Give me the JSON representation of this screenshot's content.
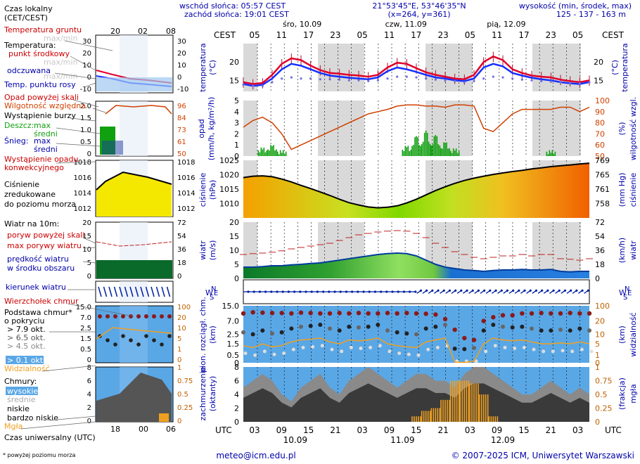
{
  "header": {
    "sunrise": "wschód słońca: 05:57 CEST",
    "sunset": "zachód słońca: 19:01 CEST",
    "coords": "21°53'45\"E, 53°46'35\"N",
    "grid": "(x=264, y=361)",
    "alt_title": "wysokość (min, środek, max)",
    "alt_values": "125 - 137 - 163 m"
  },
  "legend": {
    "local_time": "Czas lokalny",
    "local_time_zone": "(CET/CEST)",
    "soil_temp": "Temperatura gruntu",
    "soil_temp_sub": "max/min",
    "temperature": "Temperatura:",
    "mid_point": "punkt środkowy",
    "max_min": "max/min",
    "feels": "odczuwana",
    "feels_maxmin": "max/min",
    "dew": "Temp. punktu rosy",
    "precip_over": "Opad powyżej skali",
    "humidity": "Wilgotność względna",
    "storm": "Wystąpienie burzy",
    "rain": "Deszcz:",
    "rain_max": "max",
    "rain_mid": "średni",
    "snow": "Śnieg:",
    "snow_max": "max",
    "snow_mid": "średni",
    "conv1": "Wystąpienie opadu",
    "conv2": "konwekcyjnego",
    "pressure1": "Ciśnienie",
    "pressure2": "zredukowane",
    "pressure3": "do poziomu morza",
    "wind": "Wiatr na 10m:",
    "gust_over": "poryw powyżej skali",
    "gust_max": "max porywy wiatru",
    "wind_mean1": "prędkość wiatru",
    "wind_mean2": "w środku obszaru",
    "wind_dir": "kierunek wiatru",
    "cloud_top": "Wierzchołek chmur",
    "cloud_base1": "Podstawa chmur*",
    "cloud_base2": "o pokryciu",
    "okt1": "> 7.9 okt.",
    "okt2": "> 6.5 okt.",
    "okt3": "> 4.5 okt.",
    "okt4": "> 2.5 okt.",
    "okt5": "> 0.1 okt.",
    "visibility": "Widzialność",
    "clouds": "Chmury:",
    "cl_high": "wysokie",
    "cl_mid": "średnie",
    "cl_low": "niskie",
    "cl_vlow": "bardzo niskie",
    "fog": "Mgła",
    "utc": "Czas uniwersalny (UTC)",
    "footnote": "* powyżej poziomu morza"
  },
  "legend_ticks": {
    "top_local": [
      "20",
      "02",
      "08"
    ],
    "bottom_utc": [
      "18",
      "00",
      "06"
    ]
  },
  "axes": {
    "cest": "CEST",
    "utc": "UTC",
    "temp_label": "temperatura",
    "temp_unit": "(°C)",
    "precip_label": "opad",
    "precip_unit": "(mm/h, kg/m²/h)",
    "hum_label": "wilgotność wzgl.",
    "hum_unit": "(%)",
    "press_label": "ciśnienie",
    "press_unit": "(hPa)",
    "press_unit_r": "(mm Hg)",
    "wind_label": "wiatr",
    "wind_unit": "(m/s)",
    "wind_unit_r": "(km/h)",
    "cloud_label": "pion. rozciągł. chm.",
    "cloud_unit": "(km)",
    "vis_label": "widzialność",
    "vis_unit": "(km)",
    "cover_label": "zachmurzenie",
    "cover_unit": "(oktanty)",
    "fog_label": "mgła",
    "fog_unit": "(frakcja)",
    "compass": [
      "N",
      "W",
      "E",
      "S"
    ]
  },
  "dates_top": [
    {
      "label": "śro, 10.09",
      "pos": 0.17
    },
    {
      "label": "czw, 11.09",
      "pos": 0.47
    },
    {
      "label": "pią, 12.09",
      "pos": 0.76
    }
  ],
  "dates_bottom": [
    {
      "label": "10.09",
      "pos": 0.15
    },
    {
      "label": "11.09",
      "pos": 0.46
    },
    {
      "label": "12.09",
      "pos": 0.75
    }
  ],
  "cest_ticks": [
    "05",
    "11",
    "17",
    "23",
    "05",
    "11",
    "17",
    "23",
    "05",
    "11",
    "17",
    "23",
    "05"
  ],
  "utc_ticks": [
    "03",
    "09",
    "15",
    "21",
    "03",
    "09",
    "15",
    "21",
    "03",
    "09",
    "15",
    "21",
    "03"
  ],
  "footer": {
    "email": "meteo@icm.edu.pl",
    "copyright": "© 2007-2025 ICM, Uniwersytet Warszawski"
  },
  "colors": {
    "frame": "#000000",
    "night": "#d9d9d9",
    "label_blue": "#0000aa",
    "label_red": "#cc0000",
    "temp_red": "#e0002a",
    "temp_blue": "#1430ff",
    "humidity": "#d04000",
    "rain": "#10a010",
    "pressure_line": "#000000",
    "wind_dark": "#003c9c",
    "sky": "#5aa7e6",
    "orange": "#f0a020"
  },
  "chart_data": [
    {
      "type": "line",
      "title": "temperatura",
      "ylim": [
        12,
        25
      ],
      "series": [
        {
          "name": "punkt środkowy",
          "values": [
            14.5,
            14.0,
            14.3,
            16.5,
            19.5,
            21.0,
            20.5,
            19.0,
            17.8,
            17.0,
            16.8,
            16.5,
            16.3,
            16.0,
            16.5,
            18.5,
            19.8,
            19.5,
            18.3,
            17.2,
            16.5,
            16.0,
            15.5,
            15.3,
            16.5,
            20.0,
            21.5,
            20.5,
            18.0,
            17.0,
            16.3,
            16.0,
            15.8,
            15.2,
            14.8,
            14.5,
            15.0
          ]
        },
        {
          "name": "odczuwana",
          "values": [
            14.0,
            13.5,
            13.8,
            15.5,
            18.0,
            19.5,
            19.0,
            18.0,
            17.0,
            16.3,
            16.0,
            15.7,
            15.5,
            15.3,
            15.8,
            17.5,
            18.5,
            18.0,
            17.3,
            16.5,
            15.8,
            15.5,
            15.0,
            14.8,
            15.5,
            18.5,
            19.5,
            18.8,
            17.0,
            16.3,
            15.7,
            15.3,
            15.0,
            14.5,
            14.2,
            14.0,
            14.5
          ]
        },
        {
          "name": "Temp. punktu rosy",
          "values": [
            13.8,
            13.5,
            13.5,
            14.5,
            15.5,
            15.8,
            15.5,
            15.5,
            15.3,
            15.3,
            15.2,
            15.0,
            15.0,
            14.8,
            15.0,
            15.5,
            16.0,
            16.0,
            15.8,
            15.5,
            15.2,
            15.0,
            14.8,
            14.5,
            14.8,
            15.5,
            16.0,
            15.8,
            15.5,
            15.2,
            15.0,
            14.8,
            14.7,
            14.5,
            14.3,
            14.2,
            14.5
          ]
        }
      ]
    },
    {
      "type": "bar",
      "title": "opad",
      "ylim": [
        0,
        5
      ],
      "series": [
        {
          "name": "średni",
          "values": [
            0,
            0,
            0.6,
            0.9,
            0.3,
            0,
            0,
            0,
            0,
            0,
            0,
            0,
            0,
            0,
            0,
            0,
            0,
            0.8,
            1.8,
            2.3,
            1.9,
            1.2,
            0.5,
            0,
            0,
            0,
            0,
            0,
            0,
            0,
            0,
            0,
            0.3,
            0,
            0,
            0,
            0
          ]
        },
        {
          "name": "Wilgotność względna",
          "values": [
            76,
            82,
            85,
            80,
            70,
            56,
            60,
            64,
            68,
            72,
            76,
            80,
            84,
            88,
            90,
            92,
            95,
            96,
            96,
            95,
            95,
            94,
            96,
            96,
            95,
            75,
            72,
            80,
            88,
            92,
            92,
            92,
            92,
            94,
            94,
            90,
            94
          ]
        }
      ]
    },
    {
      "type": "line",
      "title": "ciśnienie",
      "ylim": [
        1005,
        1025
      ],
      "series": [
        {
          "name": "Ciśnienie",
          "values": [
            1019.0,
            1019.5,
            1019.6,
            1019.3,
            1018.5,
            1017.5,
            1016.3,
            1015.2,
            1014.0,
            1012.8,
            1011.5,
            1010.3,
            1009.5,
            1008.8,
            1008.5,
            1008.7,
            1009.2,
            1010.2,
            1011.5,
            1013.0,
            1014.5,
            1015.8,
            1017.0,
            1018.0,
            1018.8,
            1019.5,
            1020.1,
            1020.6,
            1021.1,
            1021.5,
            1022.0,
            1022.4,
            1022.8,
            1023.1,
            1023.4,
            1023.7,
            1024.0
          ]
        }
      ]
    },
    {
      "type": "line",
      "title": "wiatr",
      "ylim": [
        0,
        20
      ],
      "series": [
        {
          "name": "max porywy wiatru",
          "values": [
            8.5,
            8.8,
            9.0,
            9.3,
            9.8,
            10.5,
            11.0,
            11.5,
            12.0,
            12.5,
            13.5,
            14.5,
            15.5,
            16.0,
            16.5,
            16.8,
            17.0,
            16.8,
            16.0,
            14.5,
            12.5,
            11.0,
            9.5,
            8.5,
            7.5,
            7.0,
            7.5,
            8.0,
            8.0,
            8.5,
            8.0,
            8.5,
            8.5,
            7.0,
            6.8,
            6.5,
            7.0
          ]
        },
        {
          "name": "prędkość wiatru",
          "values": [
            4.0,
            4.0,
            4.2,
            4.5,
            4.5,
            4.8,
            5.0,
            5.3,
            5.5,
            6.0,
            6.5,
            7.0,
            7.5,
            8.0,
            8.5,
            8.8,
            9.0,
            8.8,
            8.0,
            6.5,
            5.0,
            4.0,
            3.5,
            3.0,
            2.8,
            2.5,
            2.8,
            3.0,
            3.0,
            3.2,
            3.0,
            3.0,
            3.2,
            2.5,
            2.3,
            2.5,
            2.5
          ]
        }
      ]
    },
    {
      "type": "scatter",
      "title": "pion. rozciągł. chm.",
      "ylim": [
        0,
        15
      ],
      "series": [
        {
          "name": "Wierzchołek chmur",
          "values": [
            8.5,
            8.8,
            8.7,
            8.6,
            8.6,
            8.5,
            8.7,
            8.6,
            8.5,
            8.5,
            8.6,
            8.5,
            8.6,
            8.5,
            8.5,
            8.6,
            8.5,
            8.6,
            8.5,
            8.4,
            8.2,
            7.0,
            4.2,
            2.0,
            1.5,
            6.5,
            7.5,
            8.0,
            8.0,
            8.5,
            8.5,
            8.6,
            8.5,
            8.5,
            8.6,
            8.5,
            8.5
          ]
        },
        {
          "name": "Widzialność",
          "values": [
            4.5,
            4.0,
            5.0,
            4.2,
            4.5,
            5.5,
            6.0,
            6.2,
            6.5,
            5.5,
            5.0,
            6.0,
            5.8,
            6.0,
            6.5,
            5.0,
            4.5,
            4.2,
            4.0,
            5.5,
            6.0,
            6.5,
            0.2,
            0.1,
            0.4,
            5.0,
            6.5,
            6.0,
            5.8,
            6.0,
            5.5,
            5.0,
            5.0,
            5.2,
            5.0,
            5.5,
            5.0
          ]
        }
      ]
    },
    {
      "type": "area",
      "title": "zachmurzenie",
      "ylim": [
        0,
        8
      ],
      "series": [
        {
          "name": "niskie",
          "values": [
            5,
            6,
            7,
            6,
            4,
            3,
            5,
            6,
            7,
            5,
            4,
            6,
            7,
            8,
            7,
            6,
            5,
            6,
            7,
            7,
            6,
            6,
            5,
            7,
            8,
            8,
            7,
            6,
            5,
            4,
            4,
            5,
            6,
            5,
            4,
            5,
            4
          ]
        },
        {
          "name": "Mgła",
          "values": [
            0,
            0,
            0,
            0,
            0,
            0,
            0,
            0,
            0,
            0,
            0,
            0,
            0,
            0,
            0,
            0,
            0,
            0,
            0.1,
            0.2,
            0.25,
            0.4,
            0.75,
            0.75,
            0.7,
            0.5,
            0.1,
            0,
            0,
            0,
            0,
            0,
            0,
            0,
            0,
            0,
            0
          ]
        }
      ]
    }
  ]
}
